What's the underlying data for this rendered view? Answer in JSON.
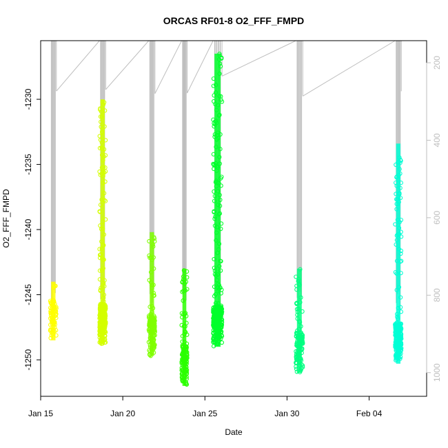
{
  "chart_data": {
    "type": "scatter",
    "title": "ORCAS RF01-8 O2_FFF_FMPD",
    "xlabel": "Date",
    "ylabel": "O2_FFF_FMPD",
    "x_range": [
      "2016-01-15T00:00",
      "2016-02-07T12:00"
    ],
    "x_ticks": [
      {
        "label": "Jan 15",
        "date": "2016-01-15"
      },
      {
        "label": "Jan 20",
        "date": "2016-01-20"
      },
      {
        "label": "Jan 25",
        "date": "2016-01-25"
      },
      {
        "label": "Jan 30",
        "date": "2016-01-30"
      },
      {
        "label": "Feb 04",
        "date": "2016-02-04"
      }
    ],
    "ylim": [
      -1252.8,
      -1225.5
    ],
    "y_ticks": [
      -1250,
      -1245,
      -1240,
      -1235,
      -1230
    ],
    "y2lim": [
      1061,
      143
    ],
    "y2_ticks": [
      200,
      400,
      600,
      800,
      1000
    ],
    "colors": {
      "secondary": "#bebebe",
      "axis": "#000000"
    },
    "series": [
      {
        "start": "2016-01-15T14:00",
        "end": "2016-01-15T23:00",
        "ymin": -1248.5,
        "ymax": -1244.0,
        "color": "#ffff00"
      },
      {
        "start": "2016-01-18T14:00",
        "end": "2016-01-18T23:00",
        "ymin": -1248.8,
        "ymax": -1230.0,
        "color": "#d4ff00"
      },
      {
        "start": "2016-01-21T14:00",
        "end": "2016-01-21T23:00",
        "ymin": -1249.7,
        "ymax": -1240.2,
        "color": "#7fff00"
      },
      {
        "start": "2016-01-23T14:00",
        "end": "2016-01-23T22:00",
        "ymin": -1252.0,
        "ymax": -1243.0,
        "color": "#2aff00"
      },
      {
        "start": "2016-01-25T12:00",
        "end": "2016-01-26T01:00",
        "ymin": -1249.0,
        "ymax": -1226.5,
        "color": "#00ff2b"
      },
      {
        "start": "2016-01-30T13:00",
        "end": "2016-01-30T23:00",
        "ymin": -1251.0,
        "ymax": -1243.0,
        "color": "#00ff80"
      },
      {
        "start": "2016-02-05T14:00",
        "end": "2016-02-05T23:00",
        "ymin": -1250.3,
        "ymax": -1233.4,
        "color": "#00ffd5"
      }
    ],
    "right_axis_trace": [
      {
        "start": "2016-01-15T14:00",
        "end": "2016-01-15T23:00"
      },
      {
        "start": "2016-01-18T14:00",
        "end": "2016-01-18T23:00"
      },
      {
        "start": "2016-01-21T14:00",
        "end": "2016-01-21T23:00"
      },
      {
        "start": "2016-01-23T14:00",
        "end": "2016-01-23T22:00"
      },
      {
        "start": "2016-01-25T12:00",
        "end": "2016-01-26T01:00"
      },
      {
        "start": "2016-01-30T13:00",
        "end": "2016-01-30T23:00"
      },
      {
        "start": "2016-02-05T14:00",
        "end": "2016-02-05T23:00"
      }
    ]
  }
}
